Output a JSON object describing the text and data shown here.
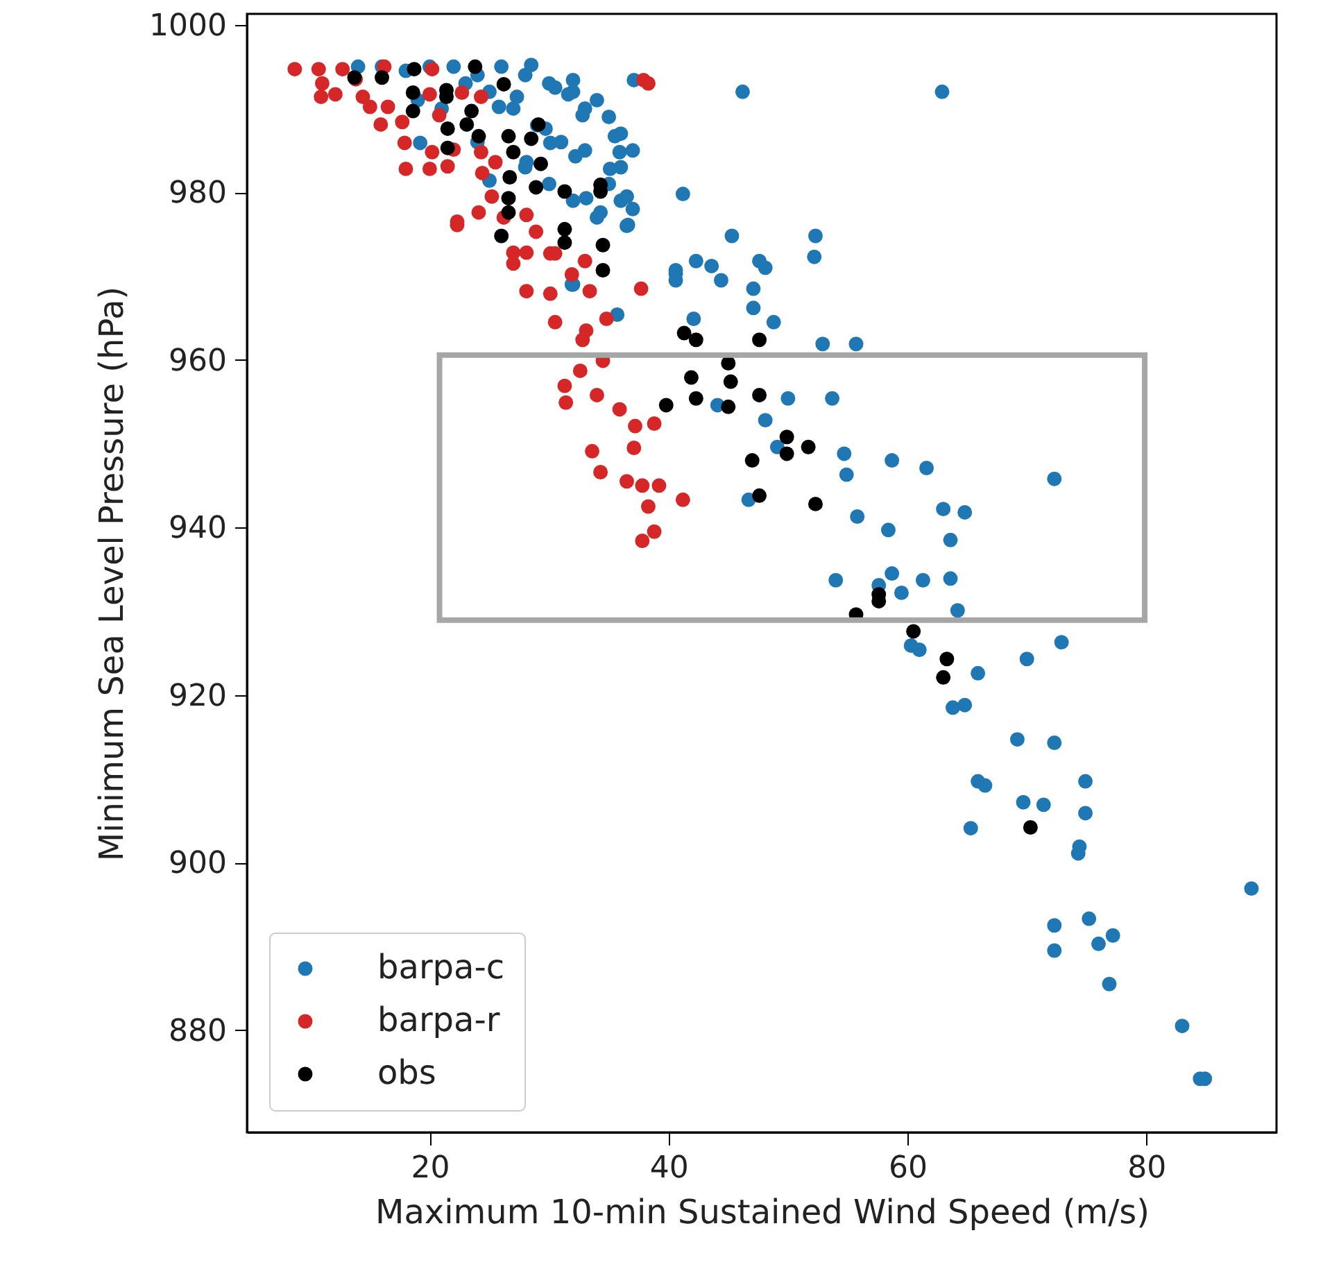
{
  "chart_data": {
    "type": "scatter",
    "xlabel": "Maximum 10-min Sustained Wind Speed (m/s)",
    "ylabel": "Minimum Sea Level Pressure (hPa)",
    "xlim": [
      4.7,
      90.9
    ],
    "ylim": [
      867.8,
      1001.3
    ],
    "xticks": [
      20,
      40,
      60,
      80
    ],
    "yticks": [
      880,
      900,
      920,
      940,
      960,
      980,
      1000
    ],
    "grid": false,
    "legend": "bottom left",
    "marker": "circle",
    "series": [
      {
        "name": "barpa-c",
        "color": "#1f77b4",
        "x": [
          14,
          16,
          18,
          20,
          22,
          24,
          26,
          28,
          30,
          32,
          33,
          34,
          35,
          36,
          37,
          36,
          35,
          36,
          37,
          34,
          33,
          31,
          29,
          27,
          25,
          23,
          21,
          19,
          30,
          32,
          28,
          24,
          28.5,
          32,
          31.6,
          32.8,
          35.5,
          35.9,
          35.1,
          32.2,
          33.1,
          36.5,
          36.6,
          34.3,
          30.1,
          25.8,
          27.3,
          29.7,
          30.5,
          28.1,
          25,
          37.1,
          19.2,
          41.2,
          40.6,
          32,
          35.7,
          36.5,
          45.3,
          52.3,
          52.2,
          40.6,
          40.6,
          42.3,
          43.6,
          44.4,
          47.6,
          48.1,
          47.1,
          47.1,
          48.8,
          31.9,
          42.1,
          52.9,
          55.7,
          50,
          53.7,
          44.1,
          48.1,
          49.1,
          54.7,
          54.9,
          46.7,
          55.8,
          58.7,
          61.6,
          72.3,
          58.4,
          63,
          64.8,
          63.6,
          54,
          58.7,
          59.5,
          61.3,
          63.6,
          64.2,
          57.6,
          60.3,
          61,
          65.9,
          70,
          72.9,
          63.8,
          64.8,
          69.2,
          72.3,
          65.9,
          66.5,
          74.9,
          69.7,
          71.4,
          74.9,
          65.3,
          74.4,
          74.3,
          88.8,
          72.3,
          72.3,
          75.2,
          76,
          77.2,
          76.9,
          83,
          84.5,
          84.9,
          46.2,
          62.9
        ],
        "values": [
          995,
          995,
          994.5,
          995,
          995,
          994,
          995,
          994,
          993,
          992,
          990,
          991,
          989,
          987,
          985,
          983,
          981,
          979,
          978,
          977,
          985,
          986,
          988,
          990,
          992,
          993,
          990,
          991,
          981,
          979,
          983,
          986,
          995.2,
          993.4,
          991.7,
          989.2,
          986.7,
          984.8,
          982.8,
          984.3,
          979.3,
          979.5,
          976.1,
          977.6,
          985.9,
          990.2,
          991.4,
          987.6,
          992.5,
          983.6,
          981.4,
          993.4,
          985.9,
          979.8,
          970.3,
          969,
          965.4,
          976,
          974.8,
          974.8,
          972.3,
          970.7,
          969.5,
          971.8,
          971.2,
          969.5,
          971.8,
          971,
          968.5,
          966.2,
          964.5,
          969,
          964.9,
          961.9,
          961.9,
          955.4,
          955.4,
          954.6,
          952.8,
          949.6,
          948.8,
          946.3,
          943.3,
          941.3,
          948,
          947.1,
          945.8,
          939.7,
          942.2,
          941.8,
          938.5,
          933.7,
          934.5,
          932.2,
          933.7,
          933.9,
          930.1,
          933.1,
          925.9,
          925.4,
          922.6,
          924.3,
          926.3,
          918.5,
          918.8,
          914.7,
          914.3,
          909.7,
          909.2,
          909.7,
          907.2,
          906.9,
          905.9,
          904.1,
          901.9,
          901.1,
          896.9,
          892.5,
          889.5,
          893.3,
          890.3,
          891.3,
          885.5,
          880.5,
          874.2,
          874.2,
          992,
          992
        ]
      },
      {
        "name": "barpa-r",
        "color": "#d62728",
        "x": [
          8.7,
          10.7,
          11,
          12.7,
          10.9,
          12.1,
          14.4,
          16.2,
          15,
          16.5,
          15.9,
          17.7,
          17.9,
          18,
          20.2,
          20,
          20.8,
          20.2,
          20,
          21.5,
          22,
          22.7,
          24.3,
          24.3,
          24.4,
          25.5,
          25.2,
          22.3,
          24.1,
          26.2,
          28.1,
          28.9,
          27,
          30.5,
          38.3,
          13.8,
          37.9,
          22.3,
          27,
          28.1,
          30.1,
          33,
          31.9,
          28.1,
          30.1,
          33.4,
          37.7,
          30.5,
          34.8,
          33.1,
          32.8,
          34.5,
          32.6,
          31.3,
          31.4,
          34,
          35.9,
          37.2,
          38.8,
          37.1,
          33.6,
          34.3,
          36.5,
          37.8,
          39.2,
          41.2,
          38.3,
          38.8,
          37.8
        ],
        "values": [
          994.7,
          994.7,
          993,
          994.7,
          991.4,
          991.7,
          991.4,
          995,
          990.2,
          990.2,
          988.1,
          988.4,
          985.9,
          982.8,
          994.7,
          991.7,
          989.2,
          984.8,
          982.8,
          983.1,
          985.1,
          991.9,
          991.4,
          984.8,
          982.3,
          983.6,
          979.5,
          976.5,
          977.6,
          977,
          977.3,
          975.3,
          971.5,
          972.7,
          993,
          993.5,
          993.4,
          976.1,
          972.8,
          972.8,
          972.7,
          971.8,
          970.2,
          968.2,
          967.9,
          968.2,
          968.5,
          964.5,
          964.9,
          963.5,
          962.4,
          959.9,
          958.7,
          956.9,
          954.9,
          955.8,
          954.1,
          952.1,
          952.4,
          949.5,
          949.1,
          946.6,
          945.5,
          945,
          945,
          943.3,
          942.5,
          939.5,
          938.4
        ]
      },
      {
        "name": "obs",
        "color": "#000000",
        "x": [
          13.7,
          16,
          18.7,
          23.8,
          26.2,
          18.6,
          21.4,
          21.4,
          18.6,
          23.5,
          23.1,
          24.1,
          21.5,
          21.5,
          26.6,
          27,
          28.5,
          29.1,
          29.3,
          28.9,
          26.7,
          26.6,
          26.6,
          31.3,
          34.3,
          34.3,
          26,
          31.3,
          31.3,
          34.5,
          34.5,
          41.3,
          42.3,
          47.6,
          45,
          41.9,
          45.2,
          47.6,
          42.3,
          39.8,
          45,
          49.9,
          51.7,
          49.9,
          47,
          47.6,
          52.3,
          57.6,
          57.6,
          55.7,
          60.5,
          63.3,
          63,
          70.3
        ],
        "values": [
          993.7,
          993.7,
          994.7,
          995,
          992.9,
          991.9,
          992.2,
          991.4,
          989.7,
          989.7,
          988.1,
          986.7,
          987.6,
          985.3,
          986.7,
          984.8,
          986.4,
          988.1,
          983.4,
          980.6,
          981.8,
          979.3,
          977.6,
          980.1,
          980.9,
          980.1,
          974.8,
          975.6,
          974,
          973.7,
          970.7,
          963.2,
          962.4,
          962.4,
          959.6,
          957.9,
          957.4,
          955.8,
          955.4,
          954.6,
          954.4,
          950.8,
          949.6,
          948.8,
          948,
          943.8,
          942.8,
          932,
          931.2,
          929.6,
          927.6,
          924.3,
          922.1,
          904.2
        ]
      }
    ]
  }
}
